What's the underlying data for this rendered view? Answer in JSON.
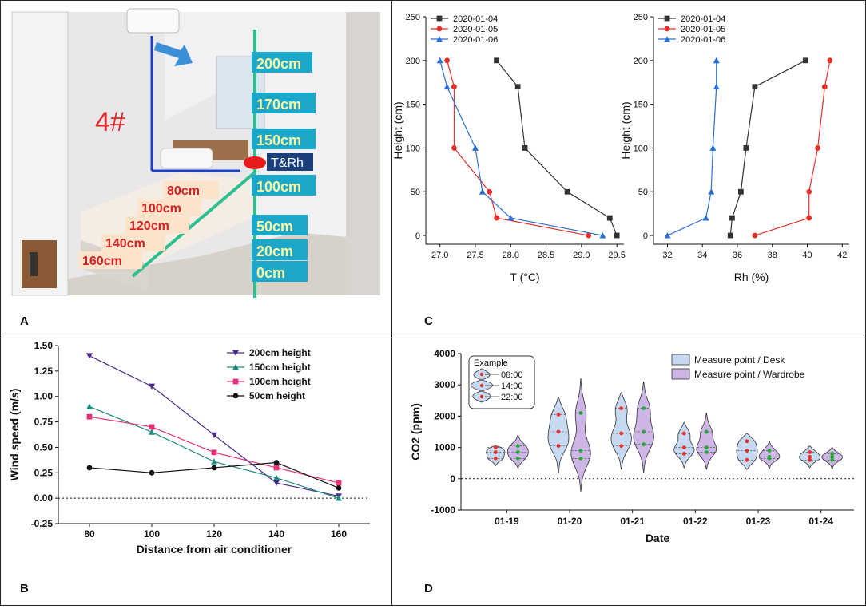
{
  "panels": {
    "a": "A",
    "b": "B",
    "c": "C",
    "d": "D"
  },
  "photo": {
    "room_label": "4#",
    "sensor_label": "T&Rh",
    "height_labels": [
      "200cm",
      "170cm",
      "150cm",
      "100cm",
      "50cm",
      "20cm",
      "0cm"
    ],
    "distance_labels": [
      "80cm",
      "100cm",
      "120cm",
      "140cm",
      "160cm"
    ]
  },
  "chart_data": [
    {
      "id": "temperature",
      "type": "line",
      "xlabel": "T (°C)",
      "ylabel": "Height (cm)",
      "xlim": [
        26.8,
        29.6
      ],
      "ylim": [
        -10,
        250
      ],
      "xticks": [
        27.0,
        27.5,
        28.0,
        28.5,
        29.0,
        29.5
      ],
      "xtick_labels": [
        "27.0",
        "27.5",
        "28.0",
        "28.5",
        "29.0",
        "29.5"
      ],
      "yticks": [
        0,
        50,
        100,
        150,
        200,
        250
      ],
      "legend": "top-left",
      "series": [
        {
          "name": "2020-01-04",
          "color": "#333333",
          "marker": "square",
          "x": [
            27.8,
            28.1,
            28.2,
            28.8,
            29.4,
            29.5
          ],
          "y": [
            200,
            170,
            100,
            50,
            20,
            0
          ]
        },
        {
          "name": "2020-01-05",
          "color": "#e8302a",
          "marker": "circle",
          "x": [
            27.1,
            27.2,
            27.2,
            27.7,
            27.8,
            29.1
          ],
          "y": [
            200,
            170,
            100,
            50,
            20,
            0
          ]
        },
        {
          "name": "2020-01-06",
          "color": "#2a6fd6",
          "marker": "triangle",
          "x": [
            27.0,
            27.1,
            27.5,
            27.6,
            28.0,
            29.3
          ],
          "y": [
            200,
            170,
            100,
            50,
            20,
            0
          ]
        }
      ]
    },
    {
      "id": "humidity",
      "type": "line",
      "xlabel": "Rh (%)",
      "ylabel": "Height (cm)",
      "xlim": [
        31.2,
        42.4
      ],
      "ylim": [
        -10,
        250
      ],
      "xticks": [
        32,
        34,
        36,
        38,
        40,
        42
      ],
      "xtick_labels": [
        "32",
        "34",
        "36",
        "38",
        "40",
        "42"
      ],
      "yticks": [
        0,
        50,
        100,
        150,
        200,
        250
      ],
      "legend": "top-left",
      "series": [
        {
          "name": "2020-01-04",
          "color": "#333333",
          "marker": "square",
          "x": [
            39.9,
            37.0,
            36.5,
            36.2,
            35.7,
            35.6
          ],
          "y": [
            200,
            170,
            100,
            50,
            20,
            0
          ]
        },
        {
          "name": "2020-01-05",
          "color": "#e8302a",
          "marker": "circle",
          "x": [
            41.3,
            41.0,
            40.6,
            40.1,
            40.1,
            37.0
          ],
          "y": [
            200,
            170,
            100,
            50,
            20,
            0
          ]
        },
        {
          "name": "2020-01-06",
          "color": "#2a6fd6",
          "marker": "triangle",
          "x": [
            34.8,
            34.8,
            34.6,
            34.5,
            34.2,
            32.0
          ],
          "y": [
            200,
            170,
            100,
            50,
            20,
            0
          ]
        }
      ]
    },
    {
      "id": "wind",
      "type": "line",
      "xlabel": "Distance from air conditioner",
      "ylabel": "Wind speed (m/s)",
      "xlim": [
        70,
        170
      ],
      "ylim": [
        -0.25,
        1.5
      ],
      "xticks": [
        80,
        100,
        120,
        140,
        160
      ],
      "xtick_labels": [
        "80",
        "100",
        "120",
        "140",
        "160"
      ],
      "yticks": [
        -0.25,
        0,
        0.25,
        0.5,
        0.75,
        1.0,
        1.25,
        1.5
      ],
      "ytick_labels": [
        "-0.25",
        "0.00",
        "0.25",
        "0.50",
        "0.75",
        "1.00",
        "1.25",
        "1.50"
      ],
      "legend": "top-right",
      "series": [
        {
          "name": "200cm height",
          "color": "#4b2a8a",
          "marker": "triangle-down",
          "x": [
            80,
            100,
            120,
            140,
            160
          ],
          "y": [
            1.4,
            1.1,
            0.62,
            0.15,
            0.02
          ]
        },
        {
          "name": "150cm height",
          "color": "#1c8c7c",
          "marker": "triangle",
          "x": [
            80,
            100,
            120,
            140,
            160
          ],
          "y": [
            0.9,
            0.65,
            0.36,
            0.2,
            0.0
          ]
        },
        {
          "name": "100cm height",
          "color": "#e8307a",
          "marker": "square",
          "x": [
            80,
            100,
            120,
            140,
            160
          ],
          "y": [
            0.8,
            0.7,
            0.45,
            0.3,
            0.15
          ]
        },
        {
          "name": "50cm height",
          "color": "#111111",
          "marker": "circle",
          "x": [
            80,
            100,
            120,
            140,
            160
          ],
          "y": [
            0.3,
            0.25,
            0.3,
            0.35,
            0.1
          ]
        }
      ]
    },
    {
      "id": "co2",
      "type": "violin",
      "xlabel": "Date",
      "ylabel": "CO2 (ppm)",
      "ylim": [
        -1000,
        4000
      ],
      "yticks": [
        -1000,
        0,
        1000,
        2000,
        3000,
        4000
      ],
      "ytick_labels": [
        "-1000",
        "0",
        "1000",
        "2000",
        "3000",
        "4000"
      ],
      "categories": [
        "01-19",
        "01-20",
        "01-21",
        "01-22",
        "01-23",
        "01-24"
      ],
      "legend": "top-right",
      "example": {
        "title": "Example",
        "times": [
          "08:00",
          "14:00",
          "22:00"
        ]
      },
      "series": [
        {
          "name": "Measure point / Desk",
          "fill": "#c6d9f1",
          "point_color": "#e8302a",
          "min": [
            420,
            180,
            300,
            350,
            300,
            350
          ],
          "max": [
            1050,
            2600,
            2750,
            1800,
            1450,
            1050
          ],
          "points": [
            [
              650,
              850,
              1000
            ],
            [
              1050,
              1500,
              2050
            ],
            [
              1050,
              1450,
              2250
            ],
            [
              800,
              1000,
              1450
            ],
            [
              600,
              900,
              1200
            ],
            [
              600,
              700,
              850
            ]
          ]
        },
        {
          "name": "Measure point / Wardrobe",
          "fill": "#cdb5e6",
          "point_color": "#22aa33",
          "min": [
            350,
            -400,
            200,
            300,
            320,
            300
          ],
          "max": [
            1400,
            3200,
            3100,
            2100,
            1200,
            1000
          ],
          "points": [
            [
              650,
              850,
              1050
            ],
            [
              650,
              900,
              2100
            ],
            [
              1100,
              1500,
              2250
            ],
            [
              850,
              1000,
              1500
            ],
            [
              650,
              700,
              900
            ],
            [
              600,
              700,
              800
            ]
          ]
        }
      ]
    }
  ]
}
